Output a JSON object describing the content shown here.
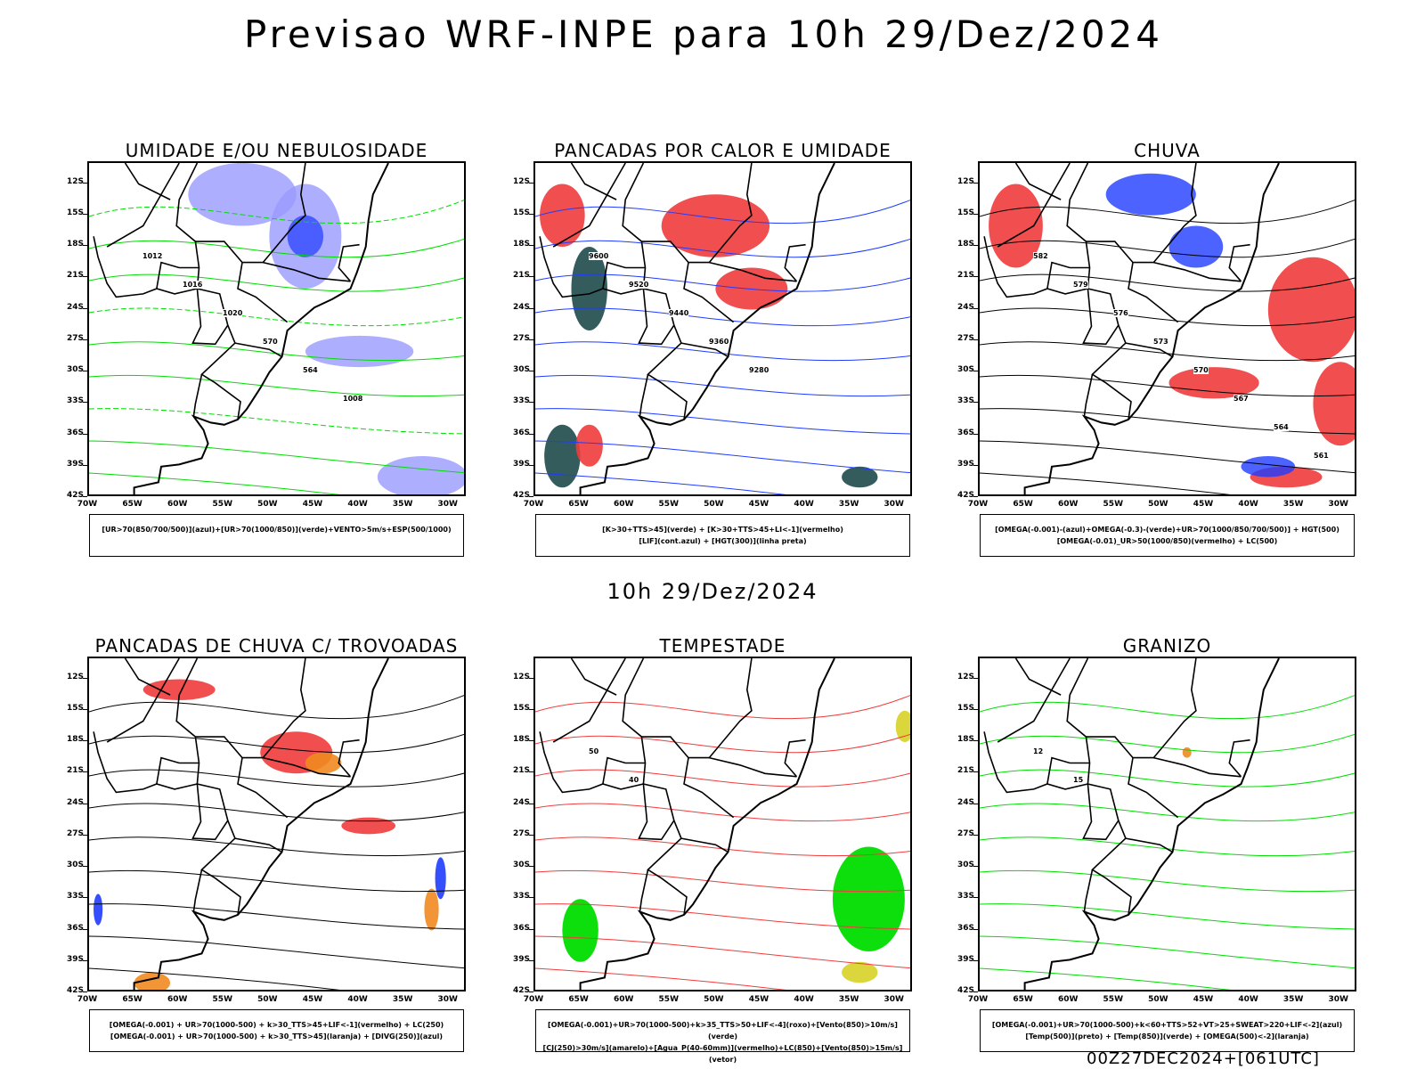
{
  "header": {
    "title": "Previsao WRF-INPE  para 10h 29/Dez/2024"
  },
  "middle_label": "10h 29/Dez/2024",
  "footer": "00Z27DEC2024+[061UTC]",
  "lat_ticks": [
    "12S",
    "15S",
    "18S",
    "21S",
    "24S",
    "27S",
    "30S",
    "33S",
    "36S",
    "39S",
    "42S"
  ],
  "lon_ticks": [
    "70W",
    "65W",
    "60W",
    "55W",
    "50W",
    "45W",
    "40W",
    "35W",
    "30W"
  ],
  "panels": [
    {
      "title": "UMIDADE E/OU NEBULOSIDADE",
      "legend": [
        "[UR>70(850/700/500)](azul)+[UR>70(1000/850)](verde)+VENTO>5m/s+ESP(500/1000)"
      ],
      "labels": [
        "1012",
        "1016",
        "1020",
        "570",
        "564",
        "1008"
      ]
    },
    {
      "title": "PANCADAS POR CALOR E UMIDADE",
      "legend": [
        "[K>30+TTS>45](verde) + [K>30+TTS>45+LI<-1](vermelho)",
        "[LIF](cont.azul) + [HGT(300)](linha preta)"
      ],
      "labels": [
        "9600",
        "9520",
        "9440",
        "9360",
        "9280"
      ]
    },
    {
      "title": "CHUVA",
      "legend": [
        "[OMEGA(-0.001)-(azul)+OMEGA(-0.3)-(verde)+UR>70(1000/850/700/500)] + HGT(500)",
        "[OMEGA(-0.01)_UR>50(1000/850)(vermelho) + LC(500)"
      ],
      "labels": [
        "582",
        "579",
        "576",
        "573",
        "570",
        "567",
        "564",
        "561"
      ]
    },
    {
      "title": "PANCADAS DE CHUVA C/ TROVOADAS",
      "legend": [
        "[OMEGA(-0.001) + UR>70(1000-500) + k>30_TTS>45+LIF<-1](vermelho) + LC(250)",
        "[OMEGA(-0.001) + UR>70(1000-500) + k>30_TTS>45](laranja) + [DIVG(250)](azul)"
      ],
      "labels": []
    },
    {
      "title": "TEMPESTADE",
      "legend": [
        "[OMEGA(-0.001)+UR>70(1000-500)+k>35_TTS>50+LIF<-4](roxo)+[Vento(850)>10m/s](verde)",
        "[CJ(250)>30m/s](amarelo)+[Agua_P(40-60mm)](vermelho)+LC(850)+[Vento(850)>15m/s](vetor)"
      ],
      "labels": [
        "50",
        "40"
      ]
    },
    {
      "title": "GRANIZO",
      "legend": [
        "[OMEGA(-0.001)+UR>70(1000-500)+k<60+TTS>52+VT>25+SWEAT>220+LIF<-2](azul)",
        "[Temp(500)](preto) + [Temp(850)](verde) + [OMEGA(500)<-2](laranja)"
      ],
      "labels": [
        "12",
        "15"
      ]
    }
  ],
  "colors": {
    "red": "#f03c3c",
    "blue": "#1f3cff",
    "lavender": "#9a9aff",
    "green": "#00dd00",
    "teal": "#1e4a4a",
    "orange": "#f08a20",
    "yellow": "#d8d430"
  }
}
